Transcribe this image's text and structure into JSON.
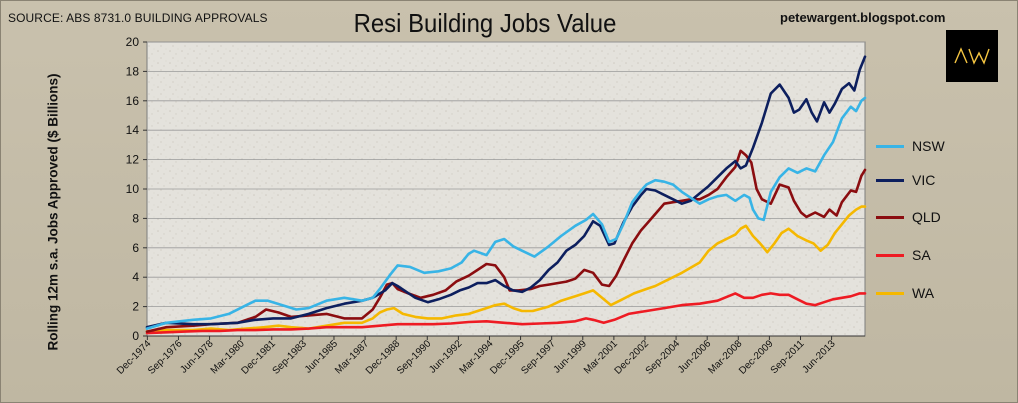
{
  "header": {
    "source": "SOURCE: ABS 8731.0 BUILDING APPROVALS",
    "title": "Resi Building Jobs Value",
    "blog": "petewargent.blogspot.com",
    "logo_text": "AW"
  },
  "colors": {
    "NSW": "#38b4e6",
    "VIC": "#0d1f5e",
    "QLD": "#8b0d10",
    "SA": "#ee1b23",
    "WA": "#f5b800",
    "plot_bg": "#e6e4df",
    "grid": "#9a9a9a"
  },
  "chart_data": {
    "type": "line",
    "title": "Resi Building Jobs Value",
    "xlabel": "",
    "ylabel": "Rolling 12m s.a. Jobs Approved ($ Billions)",
    "ylim": [
      0,
      20
    ],
    "yticks": [
      0,
      2,
      4,
      6,
      8,
      10,
      12,
      14,
      16,
      18,
      20
    ],
    "xlim": [
      1974.9,
      2015.3
    ],
    "grid": true,
    "legend_position": "right",
    "x_ticks": [
      {
        "label": "Dec-1974",
        "x": 1974.92
      },
      {
        "label": "Sep-1976",
        "x": 1976.67
      },
      {
        "label": "Jun-1978",
        "x": 1978.42
      },
      {
        "label": "Mar-1980",
        "x": 1980.17
      },
      {
        "label": "Dec-1981",
        "x": 1981.92
      },
      {
        "label": "Sep-1983",
        "x": 1983.67
      },
      {
        "label": "Jun-1985",
        "x": 1985.42
      },
      {
        "label": "Mar-1987",
        "x": 1987.17
      },
      {
        "label": "Dec-1988",
        "x": 1988.92
      },
      {
        "label": "Sep-1990",
        "x": 1990.67
      },
      {
        "label": "Jun-1992",
        "x": 1992.42
      },
      {
        "label": "Mar-1994",
        "x": 1994.17
      },
      {
        "label": "Dec-1995",
        "x": 1995.92
      },
      {
        "label": "Sep-1997",
        "x": 1997.67
      },
      {
        "label": "Jun-1999",
        "x": 1999.42
      },
      {
        "label": "Mar-2001",
        "x": 2001.17
      },
      {
        "label": "Dec-2002",
        "x": 2002.92
      },
      {
        "label": "Sep-2004",
        "x": 2004.67
      },
      {
        "label": "Jun-2006",
        "x": 2006.42
      },
      {
        "label": "Mar-2008",
        "x": 2008.17
      },
      {
        "label": "Dec-2009",
        "x": 2009.92
      },
      {
        "label": "Sep-2011",
        "x": 2011.67
      },
      {
        "label": "Jun-2013",
        "x": 2013.42
      }
    ],
    "series": [
      {
        "name": "NSW",
        "x": [
          1974.9,
          1976,
          1977.5,
          1978.5,
          1979.5,
          1980.5,
          1981,
          1981.7,
          1982.5,
          1983.3,
          1984,
          1985,
          1986,
          1987,
          1987.6,
          1988,
          1988.6,
          1989,
          1989.7,
          1990.5,
          1991.3,
          1992,
          1992.6,
          1993,
          1993.3,
          1994,
          1994.5,
          1995,
          1995.5,
          1996,
          1996.7,
          1997.5,
          1998.2,
          1999,
          1999.6,
          2000,
          2000.5,
          2000.9,
          2001.3,
          2001.7,
          2002.2,
          2002.7,
          2003,
          2003.5,
          2004,
          2004.5,
          2005,
          2005.5,
          2006,
          2006.5,
          2007,
          2007.5,
          2008,
          2008.5,
          2008.8,
          2009,
          2009.3,
          2009.6,
          2010,
          2010.5,
          2011,
          2011.5,
          2012,
          2012.5,
          2013,
          2013.5,
          2014,
          2014.5,
          2014.8,
          2015.1,
          2015.3
        ],
        "values": [
          0.5,
          0.9,
          1.1,
          1.2,
          1.5,
          2.1,
          2.4,
          2.4,
          2.1,
          1.8,
          1.9,
          2.4,
          2.6,
          2.4,
          2.6,
          3.2,
          4.2,
          4.8,
          4.7,
          4.3,
          4.4,
          4.6,
          5.0,
          5.6,
          5.8,
          5.5,
          6.4,
          6.6,
          6.1,
          5.8,
          5.4,
          6.1,
          6.8,
          7.5,
          7.9,
          8.3,
          7.6,
          6.4,
          6.6,
          7.6,
          9.1,
          9.9,
          10.3,
          10.6,
          10.5,
          10.3,
          9.8,
          9.4,
          9.0,
          9.3,
          9.5,
          9.6,
          9.2,
          9.6,
          9.4,
          8.6,
          8.0,
          7.9,
          9.8,
          10.8,
          11.4,
          11.1,
          11.4,
          11.2,
          12.3,
          13.2,
          14.8,
          15.6,
          15.3,
          16.0,
          16.2
        ]
      },
      {
        "name": "VIC",
        "x": [
          1974.9,
          1976,
          1977.5,
          1978.5,
          1980,
          1981,
          1982,
          1983,
          1984,
          1985,
          1986,
          1987,
          1987.6,
          1988.3,
          1988.7,
          1989,
          1989.5,
          1990,
          1990.7,
          1991.3,
          1992,
          1992.5,
          1993,
          1993.5,
          1994,
          1994.5,
          1995,
          1995.5,
          1996,
          1996.5,
          1997,
          1997.5,
          1998,
          1998.5,
          1999,
          1999.5,
          2000,
          2000.4,
          2000.9,
          2001.2,
          2001.7,
          2002.2,
          2002.7,
          2003,
          2003.5,
          2004,
          2004.5,
          2005,
          2005.5,
          2006,
          2006.5,
          2007,
          2007.5,
          2008,
          2008.3,
          2008.6,
          2009,
          2009.5,
          2010,
          2010.5,
          2011,
          2011.3,
          2011.6,
          2012,
          2012.3,
          2012.6,
          2013,
          2013.3,
          2013.6,
          2014,
          2014.4,
          2014.7,
          2015,
          2015.3
        ],
        "values": [
          0.6,
          0.9,
          0.8,
          0.8,
          0.9,
          1.1,
          1.2,
          1.2,
          1.5,
          1.9,
          2.2,
          2.4,
          2.6,
          3.1,
          3.6,
          3.4,
          3.0,
          2.6,
          2.3,
          2.5,
          2.8,
          3.1,
          3.3,
          3.6,
          3.6,
          3.8,
          3.4,
          3.1,
          3.0,
          3.3,
          3.8,
          4.5,
          5.0,
          5.8,
          6.2,
          6.8,
          7.8,
          7.5,
          6.2,
          6.3,
          7.7,
          8.8,
          9.6,
          10.0,
          9.9,
          9.6,
          9.3,
          9.0,
          9.2,
          9.7,
          10.2,
          10.8,
          11.4,
          11.9,
          11.4,
          11.6,
          12.8,
          14.5,
          16.5,
          17.1,
          16.2,
          15.2,
          15.4,
          16.1,
          15.2,
          14.6,
          15.9,
          15.2,
          15.8,
          16.8,
          17.2,
          16.7,
          18.1,
          19.0
        ]
      },
      {
        "name": "QLD",
        "x": [
          1974.9,
          1976,
          1977.5,
          1978.5,
          1980,
          1981,
          1981.6,
          1982.3,
          1983,
          1984,
          1985,
          1986,
          1987,
          1987.6,
          1988,
          1988.4,
          1988.7,
          1989,
          1989.6,
          1990.3,
          1991,
          1991.7,
          1992.3,
          1993,
          1993.5,
          1994,
          1994.5,
          1995,
          1995.3,
          1995.8,
          1996.5,
          1997,
          1997.5,
          1998,
          1998.5,
          1999,
          1999.5,
          2000,
          2000.5,
          2000.9,
          2001.3,
          2001.7,
          2002.2,
          2002.7,
          2003,
          2003.5,
          2004,
          2004.5,
          2005,
          2005.5,
          2006,
          2006.5,
          2007,
          2007.5,
          2008,
          2008.3,
          2008.6,
          2008.9,
          2009.2,
          2009.5,
          2010,
          2010.5,
          2011,
          2011.3,
          2011.7,
          2012,
          2012.5,
          2013,
          2013.3,
          2013.7,
          2014,
          2014.5,
          2014.8,
          2015.1,
          2015.3
        ],
        "values": [
          0.3,
          0.6,
          0.7,
          0.8,
          0.9,
          1.3,
          1.8,
          1.6,
          1.3,
          1.4,
          1.5,
          1.2,
          1.2,
          1.8,
          2.6,
          3.5,
          3.6,
          3.2,
          2.9,
          2.6,
          2.8,
          3.1,
          3.7,
          4.1,
          4.5,
          4.9,
          4.8,
          4.0,
          3.1,
          3.1,
          3.2,
          3.4,
          3.5,
          3.6,
          3.7,
          3.9,
          4.5,
          4.3,
          3.5,
          3.4,
          4.1,
          5.1,
          6.3,
          7.2,
          7.6,
          8.3,
          9.0,
          9.1,
          9.2,
          9.3,
          9.3,
          9.6,
          10.0,
          10.8,
          11.5,
          12.6,
          12.3,
          11.8,
          10.0,
          9.3,
          9.0,
          10.3,
          10.1,
          9.2,
          8.4,
          8.1,
          8.4,
          8.1,
          8.6,
          8.2,
          9.1,
          9.9,
          9.8,
          10.9,
          11.3
        ]
      },
      {
        "name": "SA",
        "x": [
          1974.9,
          1976,
          1977,
          1978,
          1979,
          1980,
          1981,
          1982,
          1983,
          1984,
          1985,
          1986,
          1987,
          1988,
          1989,
          1990,
          1991,
          1992,
          1993,
          1994,
          1995,
          1996,
          1997,
          1998,
          1999,
          1999.6,
          2000,
          2000.6,
          2001.2,
          2002,
          2003,
          2004,
          2005,
          2006,
          2007,
          2007.6,
          2008,
          2008.5,
          2009,
          2009.5,
          2010,
          2010.5,
          2011,
          2011.5,
          2012,
          2012.5,
          2013,
          2013.5,
          2014,
          2014.5,
          2015,
          2015.3
        ],
        "values": [
          0.2,
          0.25,
          0.3,
          0.35,
          0.35,
          0.4,
          0.4,
          0.45,
          0.45,
          0.5,
          0.6,
          0.6,
          0.6,
          0.7,
          0.8,
          0.8,
          0.8,
          0.85,
          0.95,
          1.0,
          0.9,
          0.8,
          0.85,
          0.9,
          1.0,
          1.2,
          1.1,
          0.9,
          1.1,
          1.5,
          1.7,
          1.9,
          2.1,
          2.2,
          2.4,
          2.7,
          2.9,
          2.6,
          2.6,
          2.8,
          2.9,
          2.8,
          2.8,
          2.5,
          2.2,
          2.1,
          2.3,
          2.5,
          2.6,
          2.7,
          2.9,
          2.9
        ]
      },
      {
        "name": "WA",
        "x": [
          1974.9,
          1976,
          1977.5,
          1978.5,
          1979.5,
          1980.5,
          1981.5,
          1982.3,
          1983,
          1984,
          1985,
          1986,
          1987,
          1987.6,
          1988,
          1988.4,
          1988.8,
          1989.3,
          1990,
          1990.7,
          1991.5,
          1992.3,
          1993,
          1993.5,
          1994,
          1994.5,
          1995,
          1995.5,
          1996,
          1996.6,
          1997.5,
          1998.2,
          1999,
          1999.5,
          2000,
          2000.5,
          2001,
          2001.5,
          2002.3,
          2003,
          2003.5,
          2004,
          2005,
          2006,
          2006.5,
          2007,
          2007.5,
          2008,
          2008.3,
          2008.6,
          2009,
          2009.4,
          2009.8,
          2010.2,
          2010.6,
          2011,
          2011.5,
          2012,
          2012.4,
          2012.8,
          2013.2,
          2013.6,
          2014,
          2014.4,
          2014.8,
          2015.1,
          2015.3
        ],
        "values": [
          0.3,
          0.4,
          0.4,
          0.5,
          0.4,
          0.5,
          0.6,
          0.7,
          0.6,
          0.5,
          0.7,
          0.9,
          0.9,
          1.2,
          1.6,
          1.8,
          1.9,
          1.5,
          1.3,
          1.2,
          1.2,
          1.4,
          1.5,
          1.7,
          1.9,
          2.1,
          2.2,
          1.9,
          1.7,
          1.7,
          2.0,
          2.4,
          2.7,
          2.9,
          3.1,
          2.6,
          2.1,
          2.4,
          2.9,
          3.2,
          3.4,
          3.7,
          4.3,
          5.0,
          5.8,
          6.3,
          6.6,
          6.9,
          7.3,
          7.5,
          6.8,
          6.3,
          5.7,
          6.3,
          7.0,
          7.3,
          6.8,
          6.5,
          6.3,
          5.8,
          6.2,
          7.0,
          7.6,
          8.2,
          8.6,
          8.8,
          8.8
        ]
      }
    ]
  }
}
